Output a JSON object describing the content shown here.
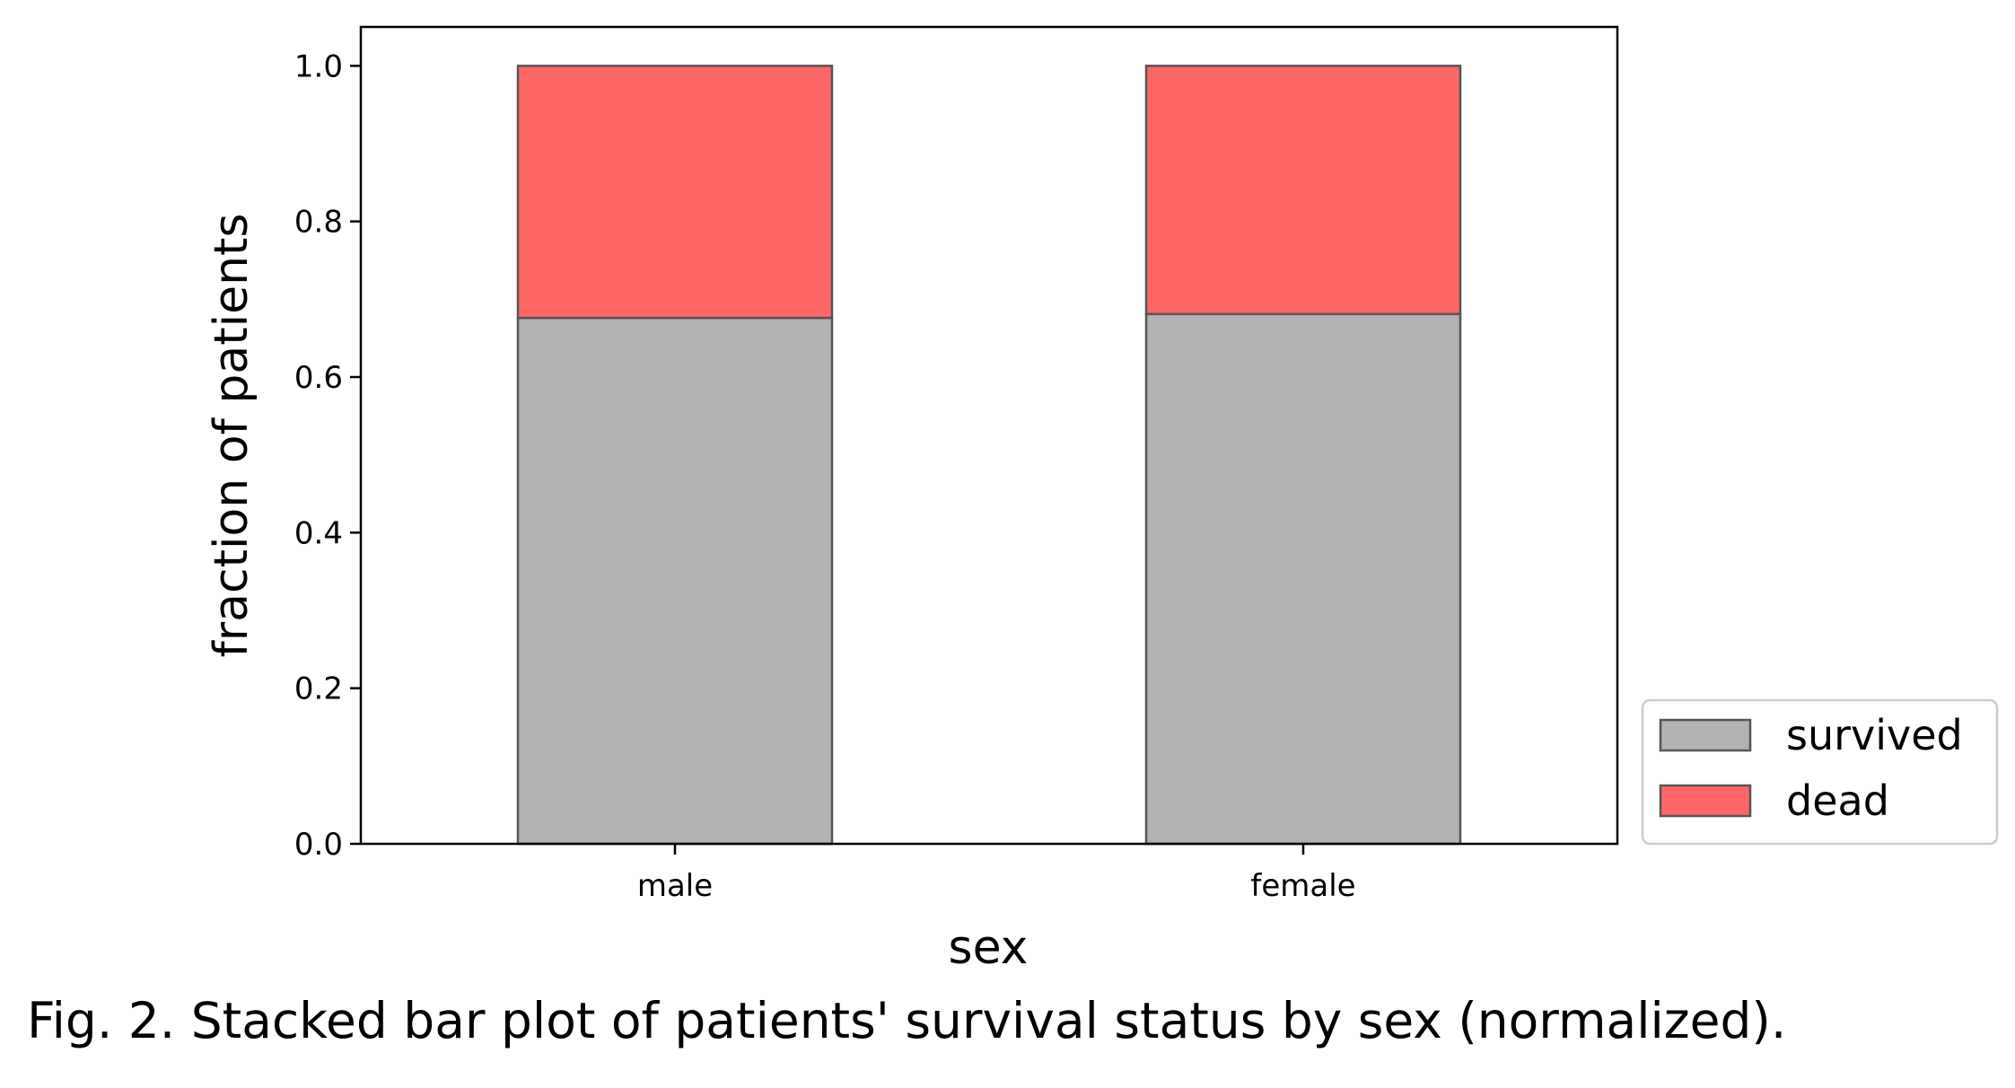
{
  "chart_data": {
    "type": "bar",
    "stacked": true,
    "categories": [
      "male",
      "female"
    ],
    "series": [
      {
        "name": "survived",
        "values": [
          0.676,
          0.681
        ],
        "color": "#b2b2b2"
      },
      {
        "name": "dead",
        "values": [
          0.324,
          0.319
        ],
        "color": "#ff6666"
      }
    ],
    "xlabel": "sex",
    "ylabel": "fraction of patients",
    "ylim": [
      0,
      1.05
    ],
    "yticks": [
      0.0,
      0.2,
      0.4,
      0.6,
      0.8,
      1.0
    ],
    "ytick_labels": [
      "0.0",
      "0.2",
      "0.4",
      "0.6",
      "0.8",
      "1.0"
    ],
    "grid": false,
    "legend_position": "outside-lower-right"
  },
  "caption": "Fig. 2. Stacked bar plot of patients' survival status by sex (normalized)."
}
